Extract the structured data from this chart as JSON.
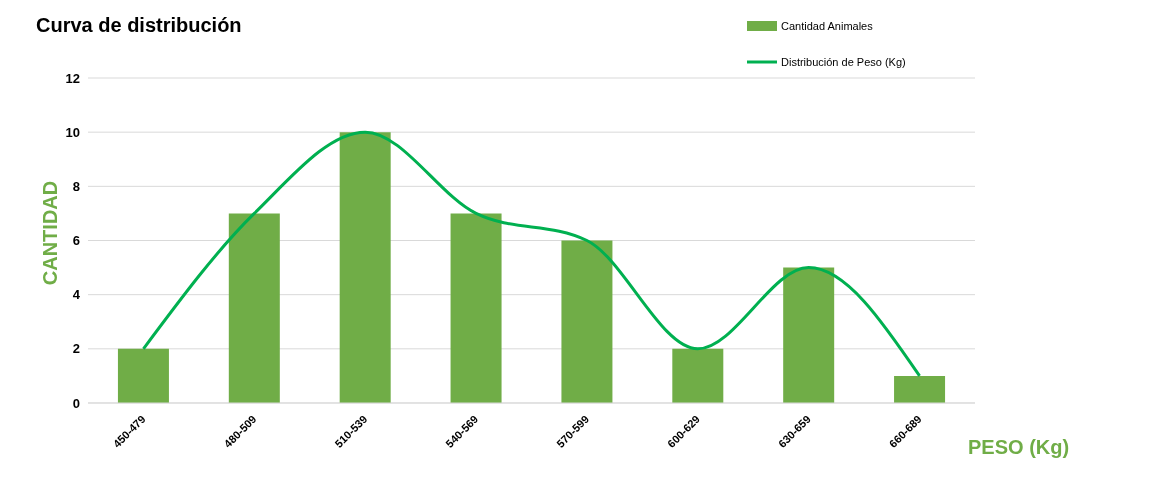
{
  "chart_data": {
    "type": "bar",
    "title": "Curva de distribución",
    "xlabel": "PESO (Kg)",
    "ylabel": "CANTIDAD",
    "categories": [
      "450-479",
      "480-509",
      "510-539",
      "540-569",
      "570-599",
      "600-629",
      "630-659",
      "660-689"
    ],
    "series": [
      {
        "name": "Cantidad Animales",
        "color": "#70ad47",
        "values": [
          2,
          7,
          10,
          7,
          6,
          2,
          5,
          1
        ]
      },
      {
        "name": "Distribución de Peso (Kg)",
        "type": "line",
        "color": "#00b050",
        "values": [
          2,
          7,
          10,
          7,
          6,
          2,
          5,
          1
        ]
      }
    ],
    "ylim": [
      0,
      12
    ],
    "yticks": [
      0,
      2,
      4,
      6,
      8,
      10,
      12
    ],
    "grid": "y",
    "legend": "top right",
    "marker": "none"
  }
}
